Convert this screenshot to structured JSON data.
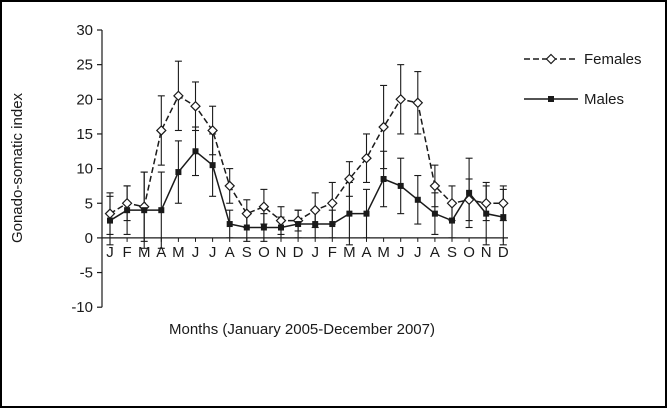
{
  "chart_data": {
    "type": "line",
    "title": "",
    "xlabel": "Months (January 2005-December 2007)",
    "ylabel": "Gonado-somatic index",
    "ylim": [
      -10,
      30
    ],
    "ytick_step": 5,
    "grid": false,
    "legend_position": "right",
    "categories": [
      "J",
      "F",
      "M",
      "A",
      "M",
      "J",
      "J",
      "A",
      "S",
      "O",
      "N",
      "D",
      "J",
      "F",
      "M",
      "A",
      "M",
      "J",
      "J",
      "A",
      "S",
      "O",
      "N",
      "D"
    ],
    "series": [
      {
        "name": "Females",
        "line_style": "dashed",
        "marker": "diamond-open",
        "color": "#1a1a1a",
        "values": [
          3.5,
          5,
          4.5,
          15.5,
          20.5,
          19,
          15.5,
          7.5,
          3.5,
          4.5,
          2.5,
          2.5,
          4,
          5,
          8.5,
          11.5,
          16,
          20,
          19.5,
          7.5,
          5,
          5.5,
          5,
          5
        ],
        "errors": [
          3,
          2.5,
          5,
          5,
          5,
          3.5,
          3.5,
          2.5,
          2,
          2.5,
          2,
          1.5,
          2.5,
          3,
          2.5,
          3.5,
          6,
          5,
          4.5,
          3,
          2.5,
          3,
          2.5,
          2.5
        ]
      },
      {
        "name": "Males",
        "line_style": "solid",
        "marker": "square-filled",
        "color": "#1a1a1a",
        "values": [
          2.5,
          4,
          4,
          4,
          9.5,
          12.5,
          10.5,
          2,
          1.5,
          1.5,
          1.5,
          2,
          2,
          2,
          3.5,
          3.5,
          8.5,
          7.5,
          5.5,
          3.5,
          2.5,
          6.5,
          3.5,
          3
        ],
        "errors": [
          3.5,
          3.5,
          5.5,
          5.5,
          4.5,
          3.5,
          4.5,
          2,
          2,
          2,
          1.5,
          2,
          2,
          2,
          4.5,
          3.5,
          4,
          4,
          3.5,
          3,
          2.5,
          5,
          4.5,
          4
        ]
      }
    ]
  }
}
